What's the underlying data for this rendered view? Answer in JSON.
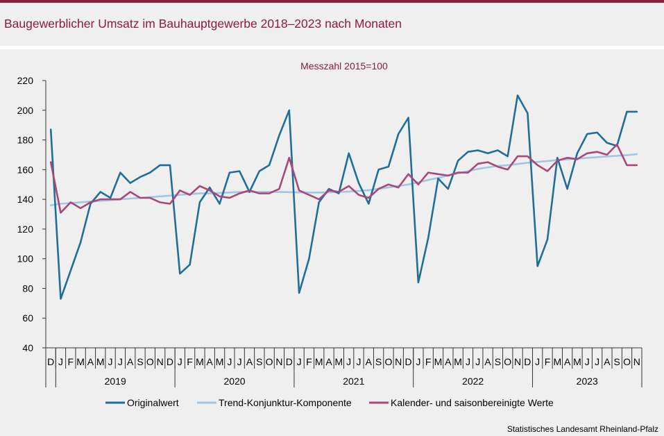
{
  "header": {
    "title": "Baugewerblicher Umsatz im Bauhauptgewerbe 2018–2023 nach Monaten"
  },
  "footer": {
    "source": "Statistisches Landesamt Rheinland-Pfalz"
  },
  "chart_data": {
    "type": "line",
    "subtitle": "Messzahl 2015=100",
    "ylim": [
      40,
      220
    ],
    "yticks": [
      40,
      60,
      80,
      100,
      120,
      140,
      160,
      180,
      200,
      220
    ],
    "grid": false,
    "legend_position": "bottom",
    "x_month_labels": [
      "D",
      "J",
      "F",
      "M",
      "A",
      "M",
      "J",
      "J",
      "A",
      "S",
      "O",
      "N",
      "D",
      "J",
      "F",
      "M",
      "A",
      "M",
      "J",
      "J",
      "A",
      "S",
      "O",
      "N",
      "D",
      "J",
      "F",
      "M",
      "A",
      "M",
      "J",
      "J",
      "A",
      "S",
      "O",
      "N",
      "D",
      "J",
      "F",
      "M",
      "A",
      "M",
      "J",
      "J",
      "A",
      "S",
      "O",
      "N",
      "D",
      "J",
      "F",
      "M",
      "A",
      "M",
      "J",
      "J",
      "A",
      "S",
      "O",
      "N"
    ],
    "year_groups": [
      {
        "label": "2019",
        "start": 1,
        "end": 12
      },
      {
        "label": "2020",
        "start": 13,
        "end": 24
      },
      {
        "label": "2021",
        "start": 25,
        "end": 36
      },
      {
        "label": "2022",
        "start": 37,
        "end": 48
      },
      {
        "label": "2023",
        "start": 49,
        "end": 59
      }
    ],
    "series": [
      {
        "name": "Originalwert",
        "color": "#1f6e98",
        "values": [
          187,
          73,
          92,
          111,
          137,
          145,
          141,
          158,
          151,
          155,
          158,
          163,
          163,
          90,
          96,
          138,
          148,
          137,
          158,
          159,
          145,
          159,
          163,
          183,
          200,
          77,
          100,
          138,
          147,
          144,
          171,
          151,
          137,
          160,
          162,
          184,
          195,
          84,
          114,
          154,
          147,
          166,
          172,
          173,
          171,
          173,
          169,
          210,
          198,
          95,
          113,
          168,
          147,
          171,
          184,
          185,
          178,
          176,
          199,
          199
        ]
      },
      {
        "name": "Trend-Konjunktur-Komponente",
        "color": "#9fc8e0",
        "values": [
          136,
          137,
          137.5,
          138,
          138.5,
          139,
          139.5,
          140,
          140.5,
          141,
          141.5,
          142,
          142.5,
          143,
          143.5,
          144,
          144,
          144.3,
          144.6,
          144.9,
          145,
          145,
          145,
          144.9,
          144.8,
          144.7,
          144.6,
          144.6,
          144.7,
          144.9,
          145.2,
          145.6,
          146.2,
          147,
          148,
          149,
          150,
          151.5,
          153,
          154.5,
          156,
          157.5,
          159,
          160.5,
          161.5,
          162.5,
          163,
          163.8,
          164.6,
          165.2,
          165.8,
          166.4,
          166.9,
          167.4,
          167.9,
          168.4,
          168.9,
          169.3,
          169.8,
          170.4
        ]
      },
      {
        "name": "Kalender- und saisonbereinigte Werte",
        "color": "#a8487a",
        "values": [
          165,
          131,
          138,
          134,
          138,
          140,
          140,
          140,
          145,
          141,
          141,
          138,
          137,
          146,
          143,
          149,
          146,
          142,
          141,
          144,
          146,
          144,
          144,
          147,
          168,
          146,
          143,
          140,
          146,
          145,
          149,
          143,
          141,
          147,
          150,
          148,
          157,
          150,
          158,
          157,
          156,
          158,
          158,
          164,
          165,
          162,
          160,
          169,
          169,
          163,
          159,
          166,
          168,
          167,
          171,
          172,
          170,
          177,
          163,
          163
        ]
      }
    ]
  }
}
